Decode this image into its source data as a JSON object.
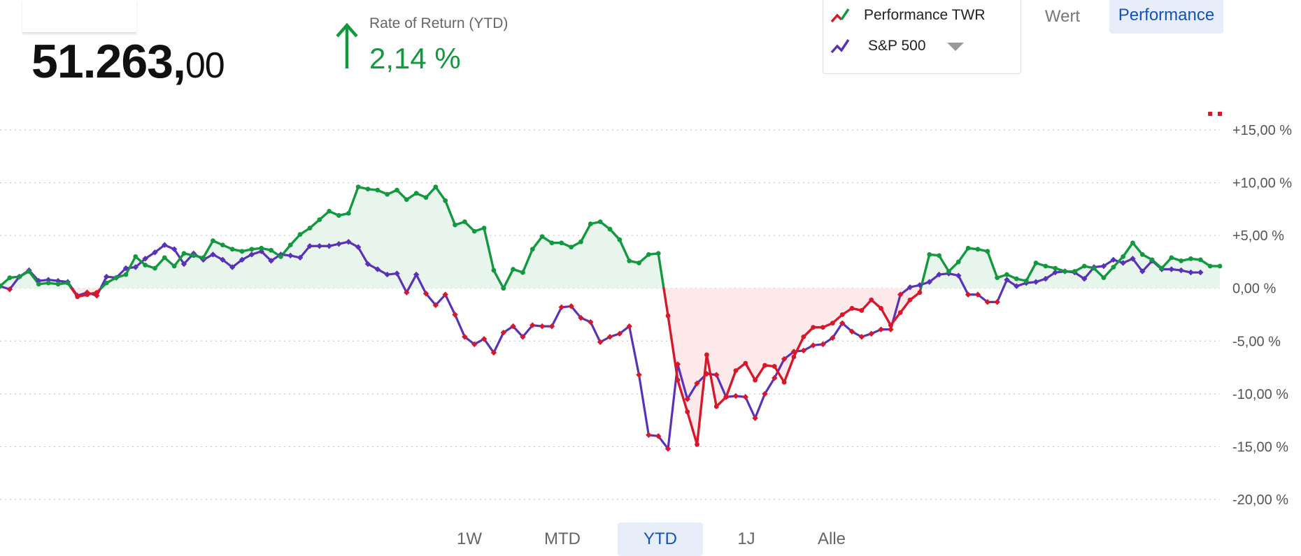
{
  "portfolio_value": {
    "integer": "51.263,",
    "decimals": "00"
  },
  "rate_of_return": {
    "label": "Rate of Return (YTD)",
    "value": "2,14 %"
  },
  "legend": {
    "series1": "Performance TWR",
    "series2": "S&P 500"
  },
  "view_toggle": {
    "wert": "Wert",
    "performance": "Performance",
    "active": "performance"
  },
  "range_tabs": [
    {
      "label": "1W"
    },
    {
      "label": "MTD"
    },
    {
      "label": "YTD"
    },
    {
      "label": "1J"
    },
    {
      "label": "Alle"
    }
  ],
  "active_tab": "YTD",
  "colors": {
    "positive": "#12993f",
    "negative": "#d7182a",
    "benchmark": "#5a32b8",
    "positive_fill": "#e8f5ec",
    "negative_fill": "#fde8ea",
    "accent": "#1552b7"
  },
  "chart_data": {
    "type": "line",
    "y_tick_labels": [
      "+15,00 %",
      "+10,00 %",
      "+5,00 %",
      "0,00 %",
      "-5,00 %",
      "-10,00 %",
      "-15,00 %",
      "-20,00 %"
    ],
    "y_ticks": [
      15,
      10,
      5,
      0,
      -5,
      -10,
      -15,
      -20
    ],
    "ylim": [
      -20,
      15
    ],
    "grid": true,
    "legend_position": "top-right",
    "series": [
      {
        "name": "Performance TWR",
        "values": [
          0.2,
          1.0,
          1.1,
          1.6,
          0.4,
          0.5,
          0.4,
          0.5,
          -0.8,
          -0.6,
          -0.4,
          0.5,
          1.0,
          1.3,
          3.0,
          2.2,
          1.9,
          2.9,
          2.1,
          3.3,
          3.1,
          2.9,
          4.5,
          4.1,
          3.7,
          3.5,
          3.7,
          3.8,
          3.6,
          3.0,
          4.1,
          5.1,
          5.7,
          6.5,
          7.3,
          6.9,
          7.1,
          9.6,
          9.4,
          9.3,
          8.9,
          9.3,
          8.4,
          9.0,
          8.6,
          9.6,
          8.3,
          6.0,
          6.3,
          5.4,
          5.7,
          1.7,
          0.0,
          1.8,
          1.5,
          3.7,
          4.9,
          4.3,
          4.3,
          3.9,
          4.4,
          6.1,
          6.3,
          5.6,
          4.6,
          2.6,
          2.4,
          3.2,
          3.3,
          -2.6,
          -8.7,
          -11.7,
          -14.8,
          -6.3,
          -11.2,
          -10.3,
          -7.8,
          -7.1,
          -8.7,
          -7.3,
          -7.4,
          -8.9,
          -6.5,
          -4.6,
          -3.7,
          -3.7,
          -3.3,
          -2.5,
          -1.9,
          -2.1,
          -1.1,
          -1.9,
          -3.5,
          -2.3,
          -1.1,
          -0.4,
          3.2,
          3.1,
          1.6,
          2.5,
          3.8,
          3.7,
          3.5,
          1.0,
          1.3,
          0.9,
          0.7,
          2.4,
          2.1,
          1.9,
          1.6,
          1.6,
          2.1,
          1.9,
          1.0,
          2.0,
          3.0,
          4.3,
          3.2,
          2.7,
          1.9,
          2.9,
          2.6,
          2.8,
          2.7,
          2.1,
          2.1
        ]
      },
      {
        "name": "S&P 500",
        "values": [
          0.2,
          -0.1,
          1.1,
          1.7,
          0.7,
          0.8,
          0.7,
          0.6,
          -0.7,
          -0.4,
          -0.7,
          1.1,
          1.0,
          1.9,
          2.0,
          2.8,
          3.4,
          4.1,
          3.7,
          2.3,
          3.3,
          2.7,
          3.2,
          2.7,
          2.0,
          2.7,
          3.2,
          3.5,
          2.6,
          3.2,
          3.1,
          2.9,
          4.0,
          4.0,
          4.0,
          4.2,
          4.4,
          3.9,
          2.3,
          1.8,
          1.3,
          1.4,
          -0.4,
          1.3,
          -0.5,
          -1.6,
          -0.6,
          -2.5,
          -4.6,
          -5.3,
          -4.8,
          -6.1,
          -4.2,
          -3.6,
          -4.6,
          -3.5,
          -3.6,
          -3.6,
          -1.8,
          -1.7,
          -2.8,
          -3.2,
          -5.1,
          -4.6,
          -4.3,
          -3.6,
          -8.2,
          -13.9,
          -14.0,
          -15.2,
          -7.2,
          -10.5,
          -9.0,
          -8.1,
          -8.2,
          -10.3,
          -10.2,
          -10.3,
          -12.3,
          -10.0,
          -8.5,
          -6.7,
          -6.0,
          -5.9,
          -5.4,
          -5.3,
          -4.7,
          -3.3,
          -4.1,
          -4.6,
          -4.3,
          -3.9,
          -3.9,
          -0.6,
          0.1,
          0.3,
          0.6,
          1.3,
          1.4,
          1.2,
          -0.6,
          -0.6,
          -1.3,
          -1.3,
          0.8,
          0.2,
          0.5,
          0.6,
          0.9,
          1.5,
          1.6,
          1.5,
          0.9,
          2.0,
          2.1,
          2.7,
          2.4,
          2.8,
          1.6,
          2.6,
          1.8,
          1.8,
          1.7,
          1.5,
          1.5
        ]
      }
    ]
  }
}
